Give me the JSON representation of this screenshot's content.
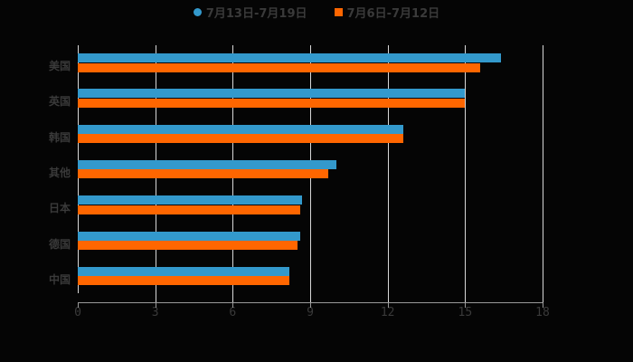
{
  "legend": [
    {
      "label": "7月13日-7月19日",
      "color": "#3399cc"
    },
    {
      "label": "7月6日-7月12日",
      "color": "#ff6600"
    }
  ],
  "chart_data": {
    "type": "bar",
    "orientation": "horizontal",
    "categories": [
      "美国",
      "英国",
      "韩国",
      "其他",
      "日本",
      "德国",
      "中国"
    ],
    "series": [
      {
        "name": "7月13日-7月19日",
        "color": "#3399cc",
        "values": [
          16.4,
          15.0,
          12.6,
          10.0,
          8.7,
          8.6,
          8.2
        ]
      },
      {
        "name": "7月6日-7月12日",
        "color": "#ff6600",
        "values": [
          15.6,
          15.0,
          12.6,
          9.7,
          8.6,
          8.5,
          8.2
        ]
      }
    ],
    "title": "",
    "xlabel": "",
    "ylabel": "",
    "xlim": [
      0,
      18
    ],
    "xticks": [
      "0",
      "3",
      "6",
      "9",
      "12",
      "15",
      "18"
    ],
    "grid": true,
    "legend_position": "top"
  }
}
